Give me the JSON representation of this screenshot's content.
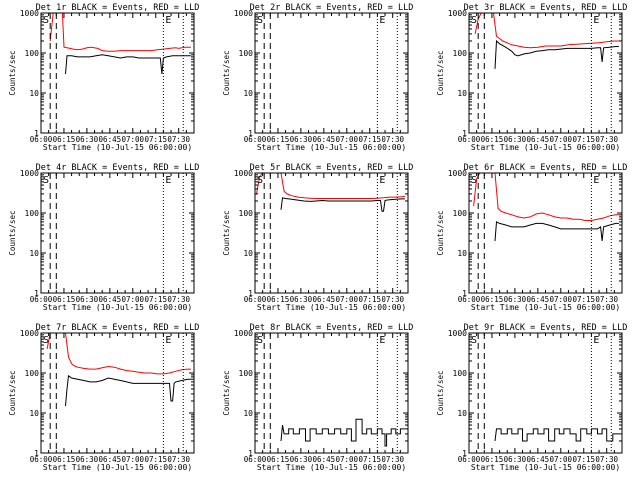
{
  "chart_data": [
    {
      "type": "line",
      "title": "Det 1r BLACK = Events, RED = LLD",
      "xlabel": "Start Time (10-Jul-15 06:00:00)",
      "ylabel": "Counts/sec",
      "yscale": "log",
      "ylim": [
        1,
        1000
      ],
      "xlim": [
        "06:00",
        "07:40"
      ],
      "x_ticks": [
        "06:00",
        "06:15",
        "06:30",
        "06:45",
        "07:00",
        "07:15",
        "07:30"
      ],
      "y_ticks": [
        "1",
        "10",
        "100",
        "1000"
      ],
      "markers": [
        "S",
        "E"
      ],
      "series": [
        {
          "color": "#ff0000",
          "x": [
            6,
            8,
            9,
            10,
            11,
            12,
            13,
            14,
            15,
            17,
            19,
            21,
            24,
            27,
            30,
            33,
            37,
            40,
            44,
            48,
            52,
            56,
            60,
            64,
            68,
            72,
            76,
            80,
            84,
            88,
            90,
            94,
            98
          ],
          "y": [
            200,
            1000,
            1000,
            1000,
            1000,
            1000,
            1000,
            1000,
            140,
            135,
            130,
            125,
            120,
            125,
            135,
            140,
            130,
            115,
            110,
            110,
            115,
            115,
            115,
            115,
            115,
            115,
            120,
            125,
            130,
            135,
            130,
            140,
            140
          ]
        },
        {
          "color": "#000000",
          "x": [
            16,
            17,
            20,
            24,
            28,
            32,
            36,
            40,
            44,
            48,
            52,
            56,
            60,
            64,
            68,
            72,
            76,
            78,
            79,
            80,
            82,
            86,
            90,
            94,
            98
          ],
          "y": [
            30,
            85,
            85,
            80,
            80,
            80,
            85,
            90,
            85,
            80,
            75,
            80,
            80,
            75,
            75,
            75,
            75,
            75,
            30,
            75,
            80,
            85,
            85,
            85,
            85
          ]
        }
      ]
    },
    {
      "type": "line",
      "title": "Det 2r BLACK = Events, RED = LLD",
      "xlabel": "Start Time (10-Jul-15 06:00:00)",
      "ylabel": "Counts/sec",
      "yscale": "log",
      "ylim": [
        1,
        1000
      ],
      "xlim": [
        "06:00",
        "07:40"
      ],
      "x_ticks": [
        "06:00",
        "06:15",
        "06:30",
        "06:45",
        "07:00",
        "07:15",
        "07:30"
      ],
      "y_ticks": [
        "1",
        "10",
        "100",
        "1000"
      ],
      "markers": [
        "S",
        "E"
      ],
      "series": []
    },
    {
      "type": "line",
      "title": "Det 3r BLACK = Events, RED = LLD",
      "xlabel": "Start Time (10-Jul-15 06:00:00)",
      "ylabel": "Counts/sec",
      "yscale": "log",
      "ylim": [
        1,
        1000
      ],
      "xlim": [
        "06:00",
        "07:40"
      ],
      "x_ticks": [
        "06:00",
        "06:15",
        "06:30",
        "06:45",
        "07:00",
        "07:15",
        "07:30"
      ],
      "y_ticks": [
        "1",
        "10",
        "100",
        "1000"
      ],
      "markers": [
        "S",
        "E"
      ],
      "series": [
        {
          "color": "#ff0000",
          "x": [
            4,
            6,
            8,
            10,
            12,
            14,
            16,
            18,
            20,
            22,
            25,
            28,
            32,
            36,
            40,
            45,
            50,
            55,
            60,
            65,
            70,
            75,
            80,
            85,
            90,
            95,
            98
          ],
          "y": [
            300,
            700,
            1000,
            1000,
            1000,
            1000,
            1000,
            260,
            230,
            200,
            180,
            160,
            150,
            140,
            135,
            140,
            150,
            150,
            150,
            160,
            165,
            170,
            175,
            180,
            190,
            200,
            200
          ]
        },
        {
          "color": "#000000",
          "x": [
            17,
            18,
            20,
            24,
            28,
            30,
            32,
            36,
            40,
            44,
            48,
            52,
            56,
            60,
            64,
            68,
            72,
            76,
            80,
            84,
            86,
            87,
            88,
            92,
            96,
            98
          ],
          "y": [
            40,
            200,
            170,
            140,
            110,
            90,
            85,
            95,
            100,
            110,
            115,
            120,
            120,
            125,
            130,
            130,
            130,
            130,
            130,
            135,
            135,
            60,
            135,
            140,
            145,
            145
          ]
        }
      ]
    },
    {
      "type": "line",
      "title": "Det 4r BLACK = Events, RED = LLD",
      "xlabel": "Start Time (10-Jul-15 06:00:00)",
      "ylabel": "Counts/sec",
      "yscale": "log",
      "ylim": [
        1,
        1000
      ],
      "xlim": [
        "06:00",
        "07:40"
      ],
      "x_ticks": [
        "06:00",
        "06:15",
        "06:30",
        "06:45",
        "07:00",
        "07:15",
        "07:30"
      ],
      "y_ticks": [
        "1",
        "10",
        "100",
        "1000"
      ],
      "markers": [
        "S",
        "E"
      ],
      "series": []
    },
    {
      "type": "line",
      "title": "Det 5r BLACK = Events, RED = LLD",
      "xlabel": "Start Time (10-Jul-15 06:00:00)",
      "ylabel": "Counts/sec",
      "yscale": "log",
      "ylim": [
        1,
        1000
      ],
      "xlim": [
        "06:00",
        "07:40"
      ],
      "x_ticks": [
        "06:00",
        "06:15",
        "06:30",
        "06:45",
        "07:00",
        "07:15",
        "07:30"
      ],
      "y_ticks": [
        "1",
        "10",
        "100",
        "1000"
      ],
      "markers": [
        "S",
        "E"
      ],
      "series": [
        {
          "color": "#ff0000",
          "x": [
            1,
            3,
            5,
            7,
            9,
            11,
            13,
            15,
            17,
            19,
            21,
            24,
            28,
            32,
            36,
            40,
            44,
            48,
            52,
            56,
            60,
            64,
            68,
            72,
            76,
            80,
            84,
            88,
            92,
            96,
            98
          ],
          "y": [
            300,
            800,
            1000,
            1000,
            1000,
            1000,
            1000,
            1000,
            1000,
            350,
            300,
            270,
            250,
            240,
            235,
            230,
            230,
            230,
            230,
            230,
            230,
            230,
            230,
            230,
            230,
            235,
            240,
            250,
            250,
            255,
            260
          ]
        },
        {
          "color": "#000000",
          "x": [
            17,
            18,
            20,
            24,
            28,
            32,
            36,
            40,
            44,
            48,
            52,
            56,
            60,
            64,
            68,
            72,
            76,
            80,
            82,
            83,
            84,
            85,
            86,
            88,
            92,
            96,
            98
          ],
          "y": [
            120,
            240,
            230,
            220,
            210,
            200,
            195,
            200,
            205,
            200,
            200,
            200,
            200,
            200,
            200,
            200,
            200,
            205,
            205,
            110,
            110,
            205,
            210,
            215,
            220,
            225,
            225
          ]
        }
      ]
    },
    {
      "type": "line",
      "title": "Det 6r BLACK = Events, RED = LLD",
      "xlabel": "Start Time (10-Jul-15 06:00:00)",
      "ylabel": "Counts/sec",
      "yscale": "log",
      "ylim": [
        1,
        1000
      ],
      "xlim": [
        "06:00",
        "07:40"
      ],
      "x_ticks": [
        "06:00",
        "06:15",
        "06:30",
        "06:45",
        "07:00",
        "07:15",
        "07:30"
      ],
      "y_ticks": [
        "1",
        "10",
        "100",
        "1000"
      ],
      "markers": [
        "S",
        "E"
      ],
      "series": [
        {
          "color": "#ff0000",
          "x": [
            3,
            5,
            7,
            9,
            11,
            13,
            15,
            17,
            19,
            21,
            24,
            28,
            32,
            36,
            40,
            44,
            48,
            52,
            56,
            60,
            64,
            68,
            72,
            76,
            80,
            84,
            88,
            92,
            96,
            98
          ],
          "y": [
            150,
            700,
            1000,
            1000,
            1000,
            1000,
            1000,
            1000,
            130,
            110,
            100,
            90,
            80,
            75,
            80,
            95,
            100,
            90,
            80,
            75,
            75,
            70,
            70,
            65,
            65,
            70,
            75,
            85,
            90,
            90
          ]
        },
        {
          "color": "#000000",
          "x": [
            17,
            18,
            20,
            24,
            28,
            32,
            36,
            40,
            44,
            48,
            52,
            56,
            60,
            64,
            68,
            72,
            76,
            80,
            84,
            86,
            87,
            88,
            92,
            96,
            98
          ],
          "y": [
            20,
            60,
            55,
            50,
            45,
            45,
            45,
            50,
            55,
            55,
            50,
            45,
            40,
            40,
            40,
            40,
            40,
            40,
            40,
            45,
            20,
            45,
            50,
            55,
            55
          ]
        }
      ]
    },
    {
      "type": "line",
      "title": "Det 7r BLACK = Events, RED = LLD",
      "xlabel": "Start Time (10-Jul-15 06:00:00)",
      "ylabel": "Counts/sec",
      "yscale": "log",
      "ylim": [
        1,
        1000
      ],
      "xlim": [
        "06:00",
        "07:40"
      ],
      "x_ticks": [
        "06:00",
        "06:15",
        "06:30",
        "06:45",
        "07:00",
        "07:15",
        "07:30"
      ],
      "y_ticks": [
        "1",
        "10",
        "100",
        "1000"
      ],
      "markers": [
        "S",
        "E"
      ],
      "series": [
        {
          "color": "#ff0000",
          "x": [
            4,
            6,
            8,
            10,
            12,
            14,
            16,
            18,
            20,
            22,
            24,
            28,
            32,
            36,
            40,
            44,
            48,
            52,
            56,
            60,
            64,
            68,
            72,
            76,
            80,
            84,
            88,
            92,
            96,
            98
          ],
          "y": [
            400,
            1000,
            1000,
            1000,
            1000,
            1000,
            1000,
            250,
            170,
            150,
            140,
            130,
            125,
            125,
            135,
            145,
            140,
            125,
            115,
            110,
            105,
            100,
            100,
            95,
            95,
            100,
            110,
            120,
            125,
            125
          ]
        },
        {
          "color": "#000000",
          "x": [
            16,
            17,
            18,
            20,
            24,
            28,
            32,
            36,
            40,
            44,
            48,
            52,
            56,
            60,
            64,
            68,
            72,
            76,
            80,
            84,
            85,
            86,
            87,
            88,
            92,
            96,
            98
          ],
          "y": [
            15,
            40,
            85,
            75,
            70,
            65,
            60,
            60,
            65,
            75,
            70,
            65,
            60,
            55,
            55,
            55,
            55,
            55,
            55,
            55,
            20,
            20,
            55,
            60,
            65,
            70,
            70
          ]
        }
      ]
    },
    {
      "type": "line",
      "title": "Det 8r BLACK = Events, RED = LLD",
      "xlabel": "Start Time (10-Jul-15 06:00:00)",
      "ylabel": "Counts/sec",
      "yscale": "log",
      "ylim": [
        1,
        1000
      ],
      "xlim": [
        "06:00",
        "07:40"
      ],
      "x_ticks": [
        "06:00",
        "06:15",
        "06:30",
        "06:45",
        "07:00",
        "07:15",
        "07:30"
      ],
      "y_ticks": [
        "1",
        "10",
        "100",
        "1000"
      ],
      "markers": [
        "S",
        "E"
      ],
      "series": [
        {
          "color": "#000000",
          "x": [
            17,
            18,
            19,
            22,
            22,
            25,
            25,
            29,
            29,
            33,
            33,
            36,
            36,
            40,
            40,
            44,
            44,
            48,
            48,
            52,
            52,
            56,
            56,
            60,
            60,
            63,
            63,
            66,
            66,
            70,
            70,
            73,
            73,
            76,
            76,
            80,
            80,
            83,
            83,
            85,
            85,
            86,
            86,
            89,
            89,
            92,
            92,
            95,
            95,
            98
          ],
          "y": [
            2,
            5,
            3,
            3,
            4,
            4,
            3,
            3,
            4,
            4,
            2,
            2,
            4,
            4,
            3,
            3,
            4,
            4,
            3,
            3,
            4,
            4,
            3,
            3,
            4,
            4,
            2,
            2,
            7,
            7,
            3,
            3,
            4,
            4,
            3,
            3,
            4,
            4,
            3,
            3,
            1.5,
            1.5,
            3,
            3,
            4,
            4,
            3,
            3,
            4,
            4
          ]
        }
      ]
    },
    {
      "type": "line",
      "title": "Det 9r BLACK = Events, RED = LLD",
      "xlabel": "Start Time (10-Jul-15 06:00:00)",
      "ylabel": "Counts/sec",
      "yscale": "log",
      "ylim": [
        1,
        1000
      ],
      "xlim": [
        "06:00",
        "07:40"
      ],
      "x_ticks": [
        "06:00",
        "06:15",
        "06:30",
        "06:45",
        "07:00",
        "07:15",
        "07:30"
      ],
      "y_ticks": [
        "1",
        "10",
        "100",
        "1000"
      ],
      "markers": [
        "S",
        "E"
      ],
      "series": [
        {
          "color": "#ff0000",
          "x": [
            48,
            52,
            56,
            60,
            64,
            68,
            72,
            76,
            80,
            84,
            88,
            92,
            96,
            98
          ],
          "y": [
            1000,
            1000,
            1000,
            1000,
            1000,
            1000,
            1000,
            1000,
            1000,
            1000,
            1000,
            1000,
            1000,
            1000
          ]
        },
        {
          "color": "#000000",
          "x": [
            17,
            18,
            21,
            21,
            25,
            25,
            28,
            28,
            32,
            32,
            35,
            35,
            38,
            38,
            42,
            42,
            45,
            45,
            49,
            49,
            52,
            52,
            56,
            56,
            59,
            59,
            62,
            62,
            66,
            66,
            70,
            70,
            73,
            73,
            77,
            77,
            80,
            80,
            84,
            84,
            87,
            87,
            90,
            90,
            94,
            94,
            98
          ],
          "y": [
            2,
            4,
            4,
            3,
            3,
            4,
            4,
            3,
            3,
            4,
            4,
            2,
            2,
            3,
            3,
            4,
            4,
            3,
            3,
            4,
            4,
            2,
            2,
            4,
            4,
            3,
            3,
            4,
            4,
            3,
            3,
            2,
            2,
            4,
            4,
            3,
            3,
            4,
            4,
            3,
            3,
            4,
            4,
            2,
            2,
            3,
            3
          ]
        }
      ]
    }
  ]
}
